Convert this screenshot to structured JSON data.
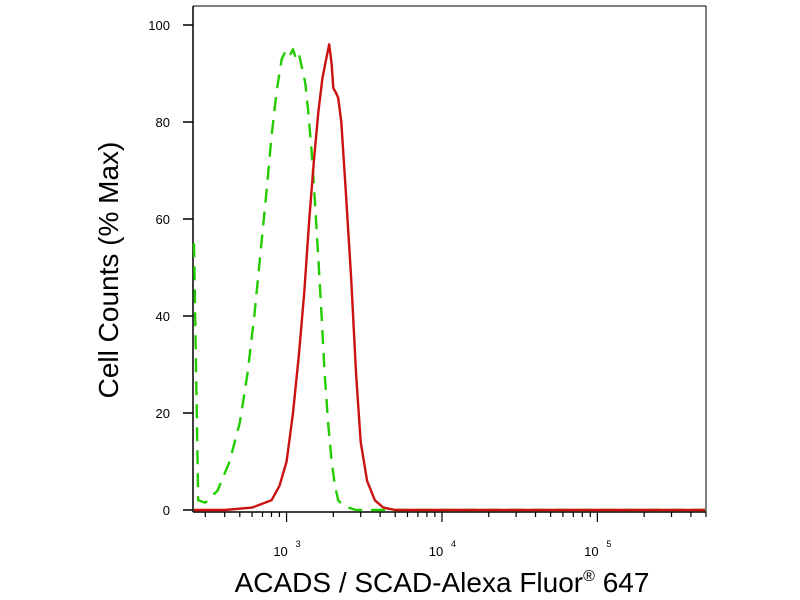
{
  "chart_data": {
    "type": "line",
    "title": "",
    "xlabel_main": "ACADS / SCAD-Alexa Fluor",
    "xlabel_sup": "®",
    "xlabel_tail": " 647",
    "ylabel": "Cell Counts (% Max)",
    "x_scale": "log",
    "xlim": [
      250,
      500000
    ],
    "ylim": [
      0,
      100
    ],
    "y_ticks": [
      0,
      20,
      40,
      60,
      80,
      100
    ],
    "x_ticks": [
      {
        "value": 1000,
        "base": "10",
        "exp": "3"
      },
      {
        "value": 10000,
        "base": "10",
        "exp": "4"
      },
      {
        "value": 100000,
        "base": "10",
        "exp": "5"
      }
    ],
    "grid": false,
    "series": [
      {
        "color": "#22cc00",
        "style": "dashed",
        "x": [
          250,
          270,
          300,
          360,
          430,
          500,
          560,
          620,
          680,
          740,
          800,
          860,
          930,
          1000,
          1060,
          1100,
          1150,
          1200,
          1260,
          1320,
          1380,
          1450,
          1520,
          1600,
          1680,
          1760,
          1850,
          1950,
          2050,
          2150,
          2300,
          2500,
          2800,
          4000,
          10000,
          100000,
          500000
        ],
        "y": [
          55,
          2,
          1.5,
          4,
          10,
          18,
          28,
          40,
          53,
          65,
          77,
          86,
          93,
          95,
          94,
          95,
          93,
          94,
          91,
          88,
          82,
          74,
          64,
          52,
          40,
          28,
          18,
          10,
          5,
          2,
          1,
          0.5,
          0,
          0,
          0,
          0,
          0
        ]
      },
      {
        "color": "#cc1111",
        "style": "solid",
        "x": [
          250,
          400,
          600,
          800,
          900,
          1000,
          1100,
          1200,
          1300,
          1400,
          1500,
          1600,
          1700,
          1800,
          1880,
          1950,
          2000,
          2080,
          2150,
          2250,
          2400,
          2600,
          2800,
          3000,
          3300,
          3700,
          4200,
          5000,
          10000,
          100000,
          500000
        ],
        "y": [
          0,
          0,
          0.5,
          2,
          5,
          10,
          20,
          32,
          45,
          60,
          72,
          82,
          89,
          93,
          96,
          92,
          87,
          86,
          85,
          80,
          66,
          48,
          28,
          14,
          6,
          2,
          0.5,
          0,
          0,
          0,
          0
        ]
      }
    ]
  }
}
